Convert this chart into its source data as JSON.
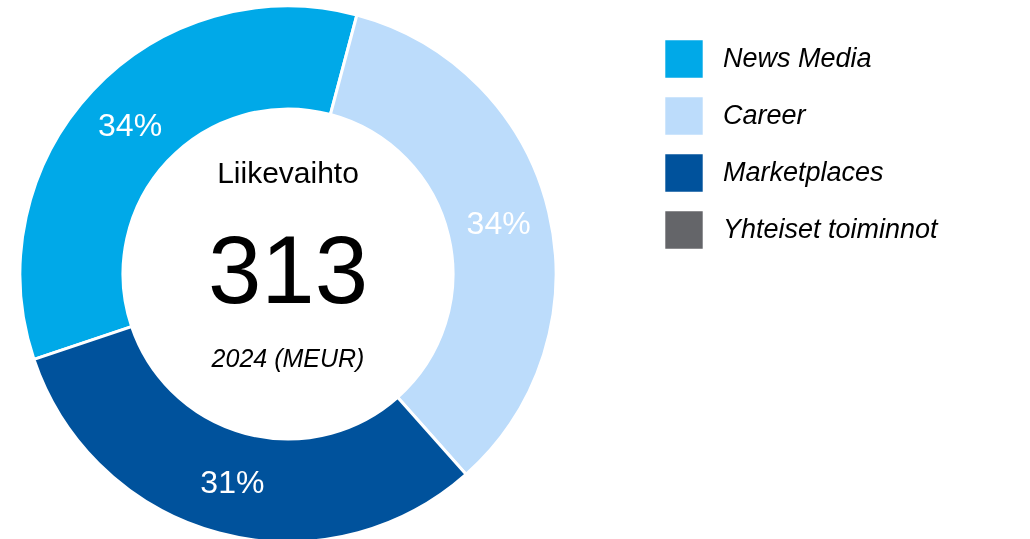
{
  "chart_data": {
    "type": "donut",
    "categories": [
      "News Media",
      "Career",
      "Marketplaces",
      "Yhteiset toiminnot"
    ],
    "values": [
      34.3,
      34.3,
      31.4,
      0
    ],
    "colors": [
      "#00a9e8",
      "#bcdcfb",
      "#00529c",
      "#646569"
    ],
    "value_labels": [
      "34%",
      "34%",
      "31%",
      null
    ],
    "annotations": [
      "Liikevaihto",
      "313",
      "2024 (MEUR)"
    ],
    "legend": "right"
  }
}
